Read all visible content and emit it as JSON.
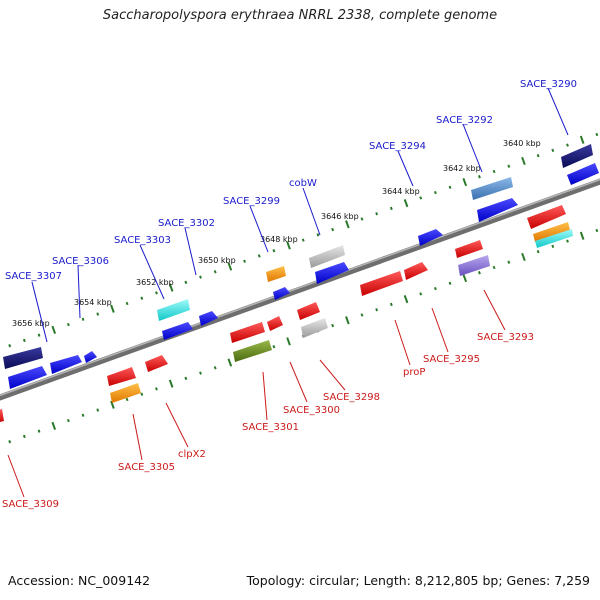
{
  "title": "Saccharopolyspora erythraea NRRL 2338, complete genome",
  "footer": {
    "accession": "Accession: NC_009142",
    "stats": "Topology: circular; Length: 8,212,805 bp; Genes: 7,259"
  },
  "colors": {
    "forward_label": "#1a1acc",
    "reverse_label": "#cc1a1a",
    "backbone": "#777777",
    "ticks": "#2a7a2a"
  },
  "scale_labels": [
    {
      "id": "3640",
      "text": "3640 kbp"
    },
    {
      "id": "3642",
      "text": "3642 kbp"
    },
    {
      "id": "3644",
      "text": "3644 kbp"
    },
    {
      "id": "3646",
      "text": "3646 kbp"
    },
    {
      "id": "3648",
      "text": "3648 kbp"
    },
    {
      "id": "3650",
      "text": "3650 kbp"
    },
    {
      "id": "3652",
      "text": "3652 kbp"
    },
    {
      "id": "3654",
      "text": "3654 kbp"
    },
    {
      "id": "3656",
      "text": "3656 kbp"
    }
  ],
  "forward_labels": [
    {
      "id": "SACE_3290",
      "text": "SACE_3290"
    },
    {
      "id": "SACE_3292",
      "text": "SACE_3292"
    },
    {
      "id": "SACE_3294",
      "text": "SACE_3294"
    },
    {
      "id": "cobW",
      "text": "cobW"
    },
    {
      "id": "SACE_3299",
      "text": "SACE_3299"
    },
    {
      "id": "SACE_3302",
      "text": "SACE_3302"
    },
    {
      "id": "SACE_3303",
      "text": "SACE_3303"
    },
    {
      "id": "SACE_3306",
      "text": "SACE_3306"
    },
    {
      "id": "SACE_3307",
      "text": "SACE_3307"
    }
  ],
  "reverse_labels": [
    {
      "id": "SACE_3293",
      "text": "SACE_3293"
    },
    {
      "id": "SACE_3295",
      "text": "SACE_3295"
    },
    {
      "id": "proP",
      "text": "proP"
    },
    {
      "id": "SACE_3298",
      "text": "SACE_3298"
    },
    {
      "id": "SACE_3300",
      "text": "SACE_3300"
    },
    {
      "id": "SACE_3301",
      "text": "SACE_3301"
    },
    {
      "id": "clpX2",
      "text": "clpX2"
    },
    {
      "id": "SACE_3305",
      "text": "SACE_3305"
    },
    {
      "id": "SACE_3309",
      "text": "SACE_3309"
    }
  ]
}
